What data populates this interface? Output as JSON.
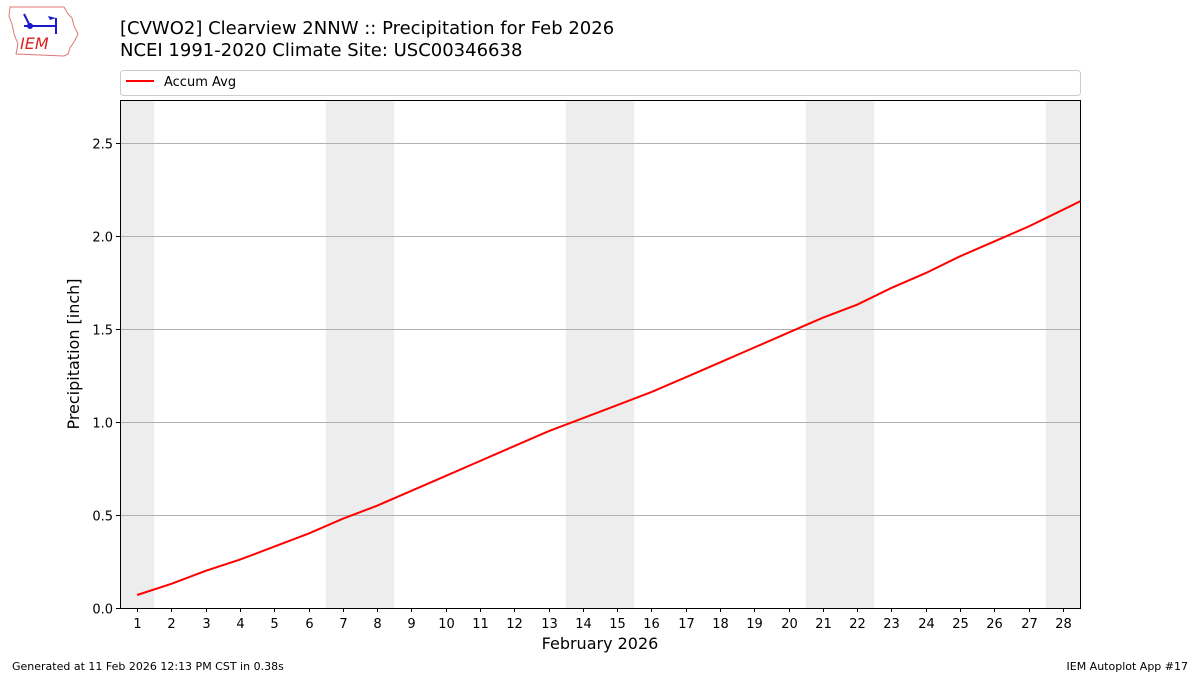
{
  "header": {
    "title_line1": "[CVWO2] Clearview 2NNW :: Precipitation for Feb 2026",
    "title_line2": "NCEI 1991-2020 Climate Site: USC00346638",
    "logo_text": "IEM"
  },
  "footer": {
    "generated": "Generated at 11 Feb 2026 12:13 PM CST in 0.38s",
    "app": "IEM Autoplot App #17"
  },
  "chart_data": {
    "type": "line",
    "xlabel": "February 2026",
    "ylabel": "Precipitation [inch]",
    "xlim": [
      0.5,
      28.5
    ],
    "ylim": [
      0,
      2.73
    ],
    "x_ticks": [
      1,
      2,
      3,
      4,
      5,
      6,
      7,
      8,
      9,
      10,
      11,
      12,
      13,
      14,
      15,
      16,
      17,
      18,
      19,
      20,
      21,
      22,
      23,
      24,
      25,
      26,
      27,
      28
    ],
    "y_ticks": [
      0.0,
      0.5,
      1.0,
      1.5,
      2.0,
      2.5
    ],
    "y_tick_labels": [
      "0.0",
      "0.5",
      "1.0",
      "1.5",
      "2.0",
      "2.5"
    ],
    "grid": "horizontal",
    "legend_position": "top",
    "weekend_shading": [
      [
        0.5,
        1.5
      ],
      [
        6.5,
        8.5
      ],
      [
        13.5,
        15.5
      ],
      [
        20.5,
        22.5
      ],
      [
        27.5,
        28.5
      ]
    ],
    "shading_color": "#ededed",
    "series": [
      {
        "name": "Accum Avg",
        "color": "#ff0000",
        "x": [
          1,
          2,
          3,
          4,
          5,
          6,
          7,
          8,
          9,
          10,
          11,
          12,
          13,
          14,
          15,
          16,
          17,
          18,
          19,
          20,
          21,
          22,
          23,
          24,
          25,
          26,
          27,
          28,
          29
        ],
        "values": [
          0.07,
          0.13,
          0.2,
          0.26,
          0.33,
          0.4,
          0.48,
          0.55,
          0.63,
          0.71,
          0.79,
          0.87,
          0.95,
          1.02,
          1.09,
          1.16,
          1.24,
          1.32,
          1.4,
          1.48,
          1.56,
          1.63,
          1.72,
          1.8,
          1.89,
          1.97,
          2.05,
          2.14,
          2.23
        ]
      }
    ]
  }
}
